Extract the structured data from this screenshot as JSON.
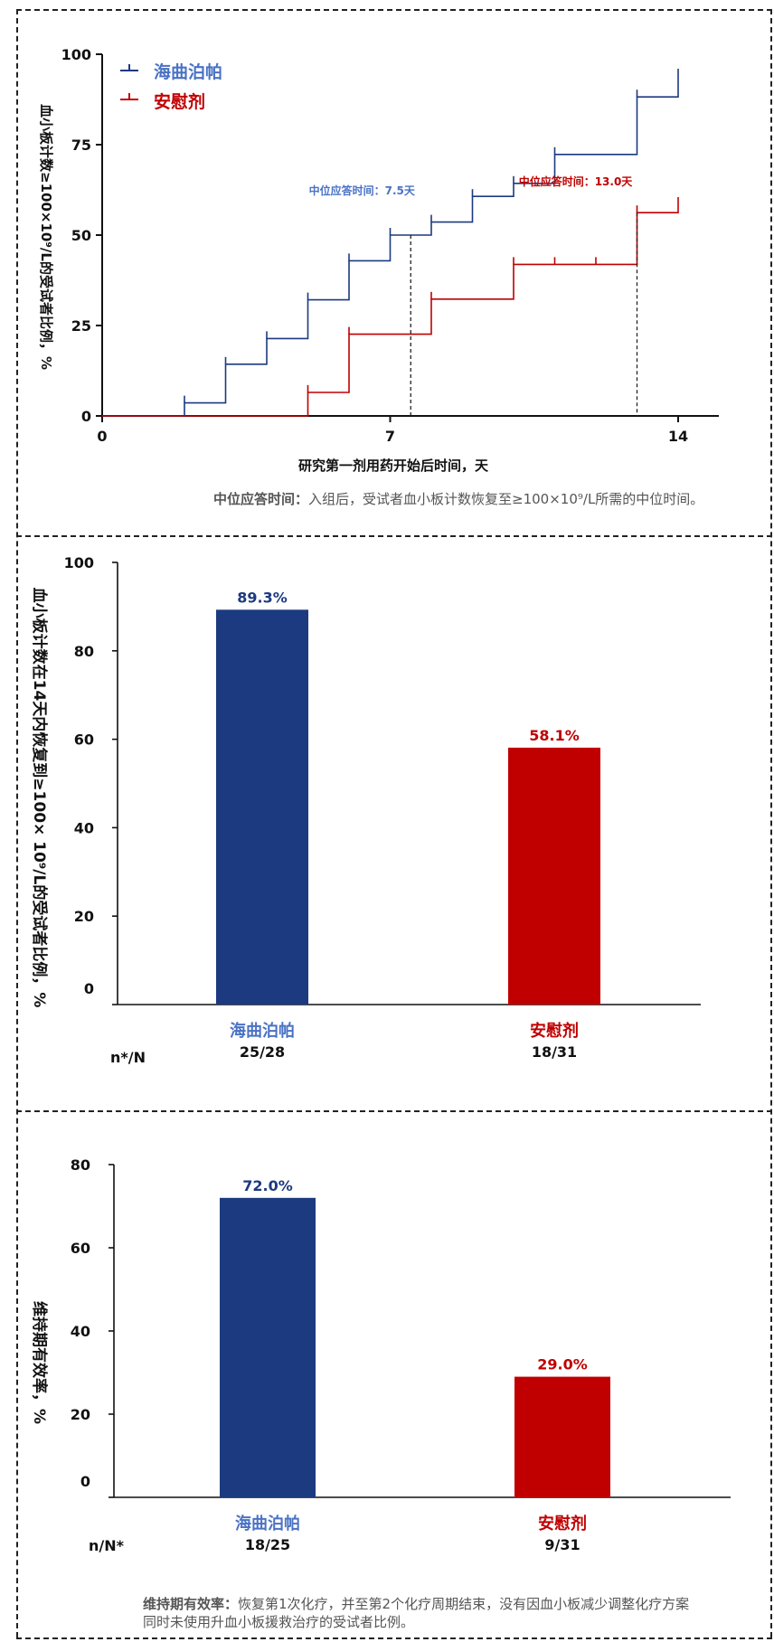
{
  "colors": {
    "blue": "#1c3a80",
    "blue_light": "#4a72c4",
    "red": "#c00000",
    "axis": "#111111"
  },
  "km_chart": {
    "chart_data": {
      "type": "line",
      "xlabel": "研究第一剂用药开始后时间，天",
      "ylabel": "血小板计数≥100×10⁹/L的受试者比例，%",
      "xlim": [
        0,
        15
      ],
      "ylim": [
        0,
        100
      ],
      "x_ticks": [
        "0",
        "7",
        "14"
      ],
      "y_ticks": [
        "0",
        "25",
        "50",
        "75",
        "100"
      ],
      "legend": "top-left",
      "series": [
        {
          "name": "海曲泊帕",
          "color": "#1c3a80",
          "x": [
            0,
            2,
            2,
            3,
            3,
            4,
            4,
            5,
            5,
            6,
            6,
            7,
            7,
            8,
            8,
            9,
            9,
            10,
            10,
            11,
            11,
            13,
            13,
            14,
            14
          ],
          "y": [
            0,
            0,
            3.6,
            3.6,
            14.3,
            14.3,
            21.4,
            21.4,
            32.1,
            32.1,
            42.9,
            42.9,
            50,
            50,
            53.6,
            53.6,
            60.7,
            60.7,
            64.3,
            64.3,
            72.3,
            72.3,
            88.2,
            88.2,
            94
          ]
        },
        {
          "name": "安慰剂",
          "color": "#c00000",
          "x": [
            0,
            5,
            5,
            6,
            6,
            8,
            8,
            10,
            10,
            13,
            13,
            14,
            14
          ],
          "y": [
            0,
            0,
            6.5,
            6.5,
            22.6,
            22.6,
            32.3,
            32.3,
            41.9,
            41.9,
            56.2,
            56.2,
            58.5
          ]
        }
      ],
      "censor_marks": [
        {
          "series": "海曲泊帕",
          "x": [
            2,
            3,
            4,
            5,
            6,
            7,
            8,
            9,
            10,
            11,
            13,
            14
          ]
        },
        {
          "series": "安慰剂",
          "x": [
            5,
            6,
            8,
            10,
            11,
            12,
            13,
            14
          ]
        }
      ],
      "medians": [
        {
          "label": "中位应答时间：7.5天",
          "x": 7.5,
          "y": 50,
          "color": "#4a72c4"
        },
        {
          "label": "中位应答时间：13.0天",
          "x": 13.0,
          "y": 56.2,
          "color": "#c00000"
        }
      ]
    },
    "note_label": "中位应答时间：",
    "note_text": "入组后，受试者血小板计数恢复至≥100×10⁹/L所需的中位时间。"
  },
  "bar_chart_1": {
    "chart_data": {
      "type": "bar",
      "categories": [
        "海曲泊帕",
        "安慰剂"
      ],
      "values": [
        89.3,
        58.1
      ],
      "value_labels": [
        "89.3%",
        "58.1%"
      ],
      "ylabel": "血小板计数在14天内恢复到≥100× 10⁹/L的受试者比例，%",
      "ylim": [
        0,
        100
      ],
      "y_ticks": [
        "0",
        "20",
        "40",
        "60",
        "80",
        "100"
      ],
      "colors": [
        "#1c3a80",
        "#c00000"
      ],
      "n_label": "n*/N",
      "n_values": [
        "25/28",
        "18/31"
      ]
    }
  },
  "bar_chart_2": {
    "chart_data": {
      "type": "bar",
      "categories": [
        "海曲泊帕",
        "安慰剂"
      ],
      "values": [
        72.0,
        29.0
      ],
      "value_labels": [
        "72.0%",
        "29.0%"
      ],
      "ylabel": "维持期有效率，%",
      "ylim": [
        0,
        80
      ],
      "y_ticks": [
        "0",
        "20",
        "40",
        "60",
        "80"
      ],
      "colors": [
        "#1c3a80",
        "#c00000"
      ],
      "n_label": "n/N*",
      "n_values": [
        "18/25",
        "9/31"
      ]
    },
    "note_label": "维持期有效率：",
    "note_line1": "恢复第1次化疗，并至第2个化疗周期结束，没有因血小板减少调整化疗方案",
    "note_line2": "同时未使用升血小板援救治疗的受试者比例。"
  }
}
